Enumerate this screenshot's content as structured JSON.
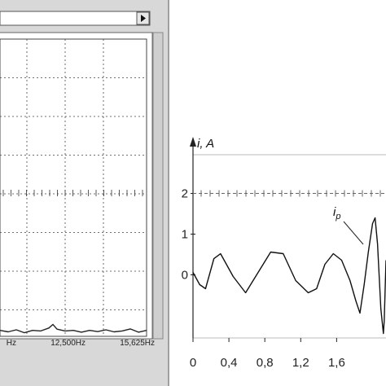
{
  "chart_data": [
    {
      "type": "line",
      "x": [
        9522,
        9890,
        10257,
        10625,
        10992,
        11360,
        11728,
        11912,
        12095,
        12463,
        12830,
        13198,
        13566,
        13933,
        14301,
        14668,
        15036,
        15404,
        15771,
        16139
      ],
      "values": [
        0.02,
        0.015,
        0.022,
        0.012,
        0.02,
        0.018,
        0.028,
        0.04,
        0.024,
        0.018,
        0.02,
        0.014,
        0.02,
        0.016,
        0.022,
        0.015,
        0.018,
        0.025,
        0.014,
        0.02
      ],
      "color": "#222222",
      "xlim": [
        9522,
        16139
      ],
      "ylim": [
        0,
        1
      ],
      "xticks": [
        {
          "value": 9375,
          "label": "Hz"
        },
        {
          "value": 12500,
          "label": "12,500Hz"
        },
        {
          "value": 15625,
          "label": "15,625Hz"
        }
      ]
    },
    {
      "type": "line",
      "ylabel": "i, A",
      "x": [
        0,
        0.074,
        0.14,
        0.233,
        0.307,
        0.447,
        0.586,
        0.726,
        0.865,
        1.005,
        1.144,
        1.284,
        1.377,
        1.47,
        1.563,
        1.656,
        1.749,
        1.814,
        1.86,
        1.907,
        1.953,
        2.0,
        2.028,
        2.056,
        2.093,
        2.121,
        2.13,
        2.15
      ],
      "values": [
        0.06,
        -0.24,
        -0.34,
        0.4,
        0.52,
        -0.04,
        -0.44,
        0.06,
        0.56,
        0.52,
        -0.14,
        -0.44,
        -0.34,
        0.26,
        0.52,
        0.36,
        -0.14,
        -0.64,
        -0.94,
        -0.24,
        0.56,
        1.26,
        1.4,
        0.76,
        -0.84,
        -1.44,
        -1.14,
        0.36
      ],
      "color": "#111111",
      "xlim": [
        0,
        2.15
      ],
      "ylim": [
        -1.55,
        2.95
      ],
      "xticks": [
        0,
        {
          "value": 0.4,
          "label": "0,4"
        },
        {
          "value": 0.8,
          "label": "0,8"
        },
        {
          "value": 1.2,
          "label": "1,2"
        },
        {
          "value": 1.6,
          "label": "1,6"
        }
      ],
      "yticks": [
        0,
        1,
        2
      ],
      "annotation": {
        "text": "i",
        "subscript": "p"
      }
    }
  ]
}
